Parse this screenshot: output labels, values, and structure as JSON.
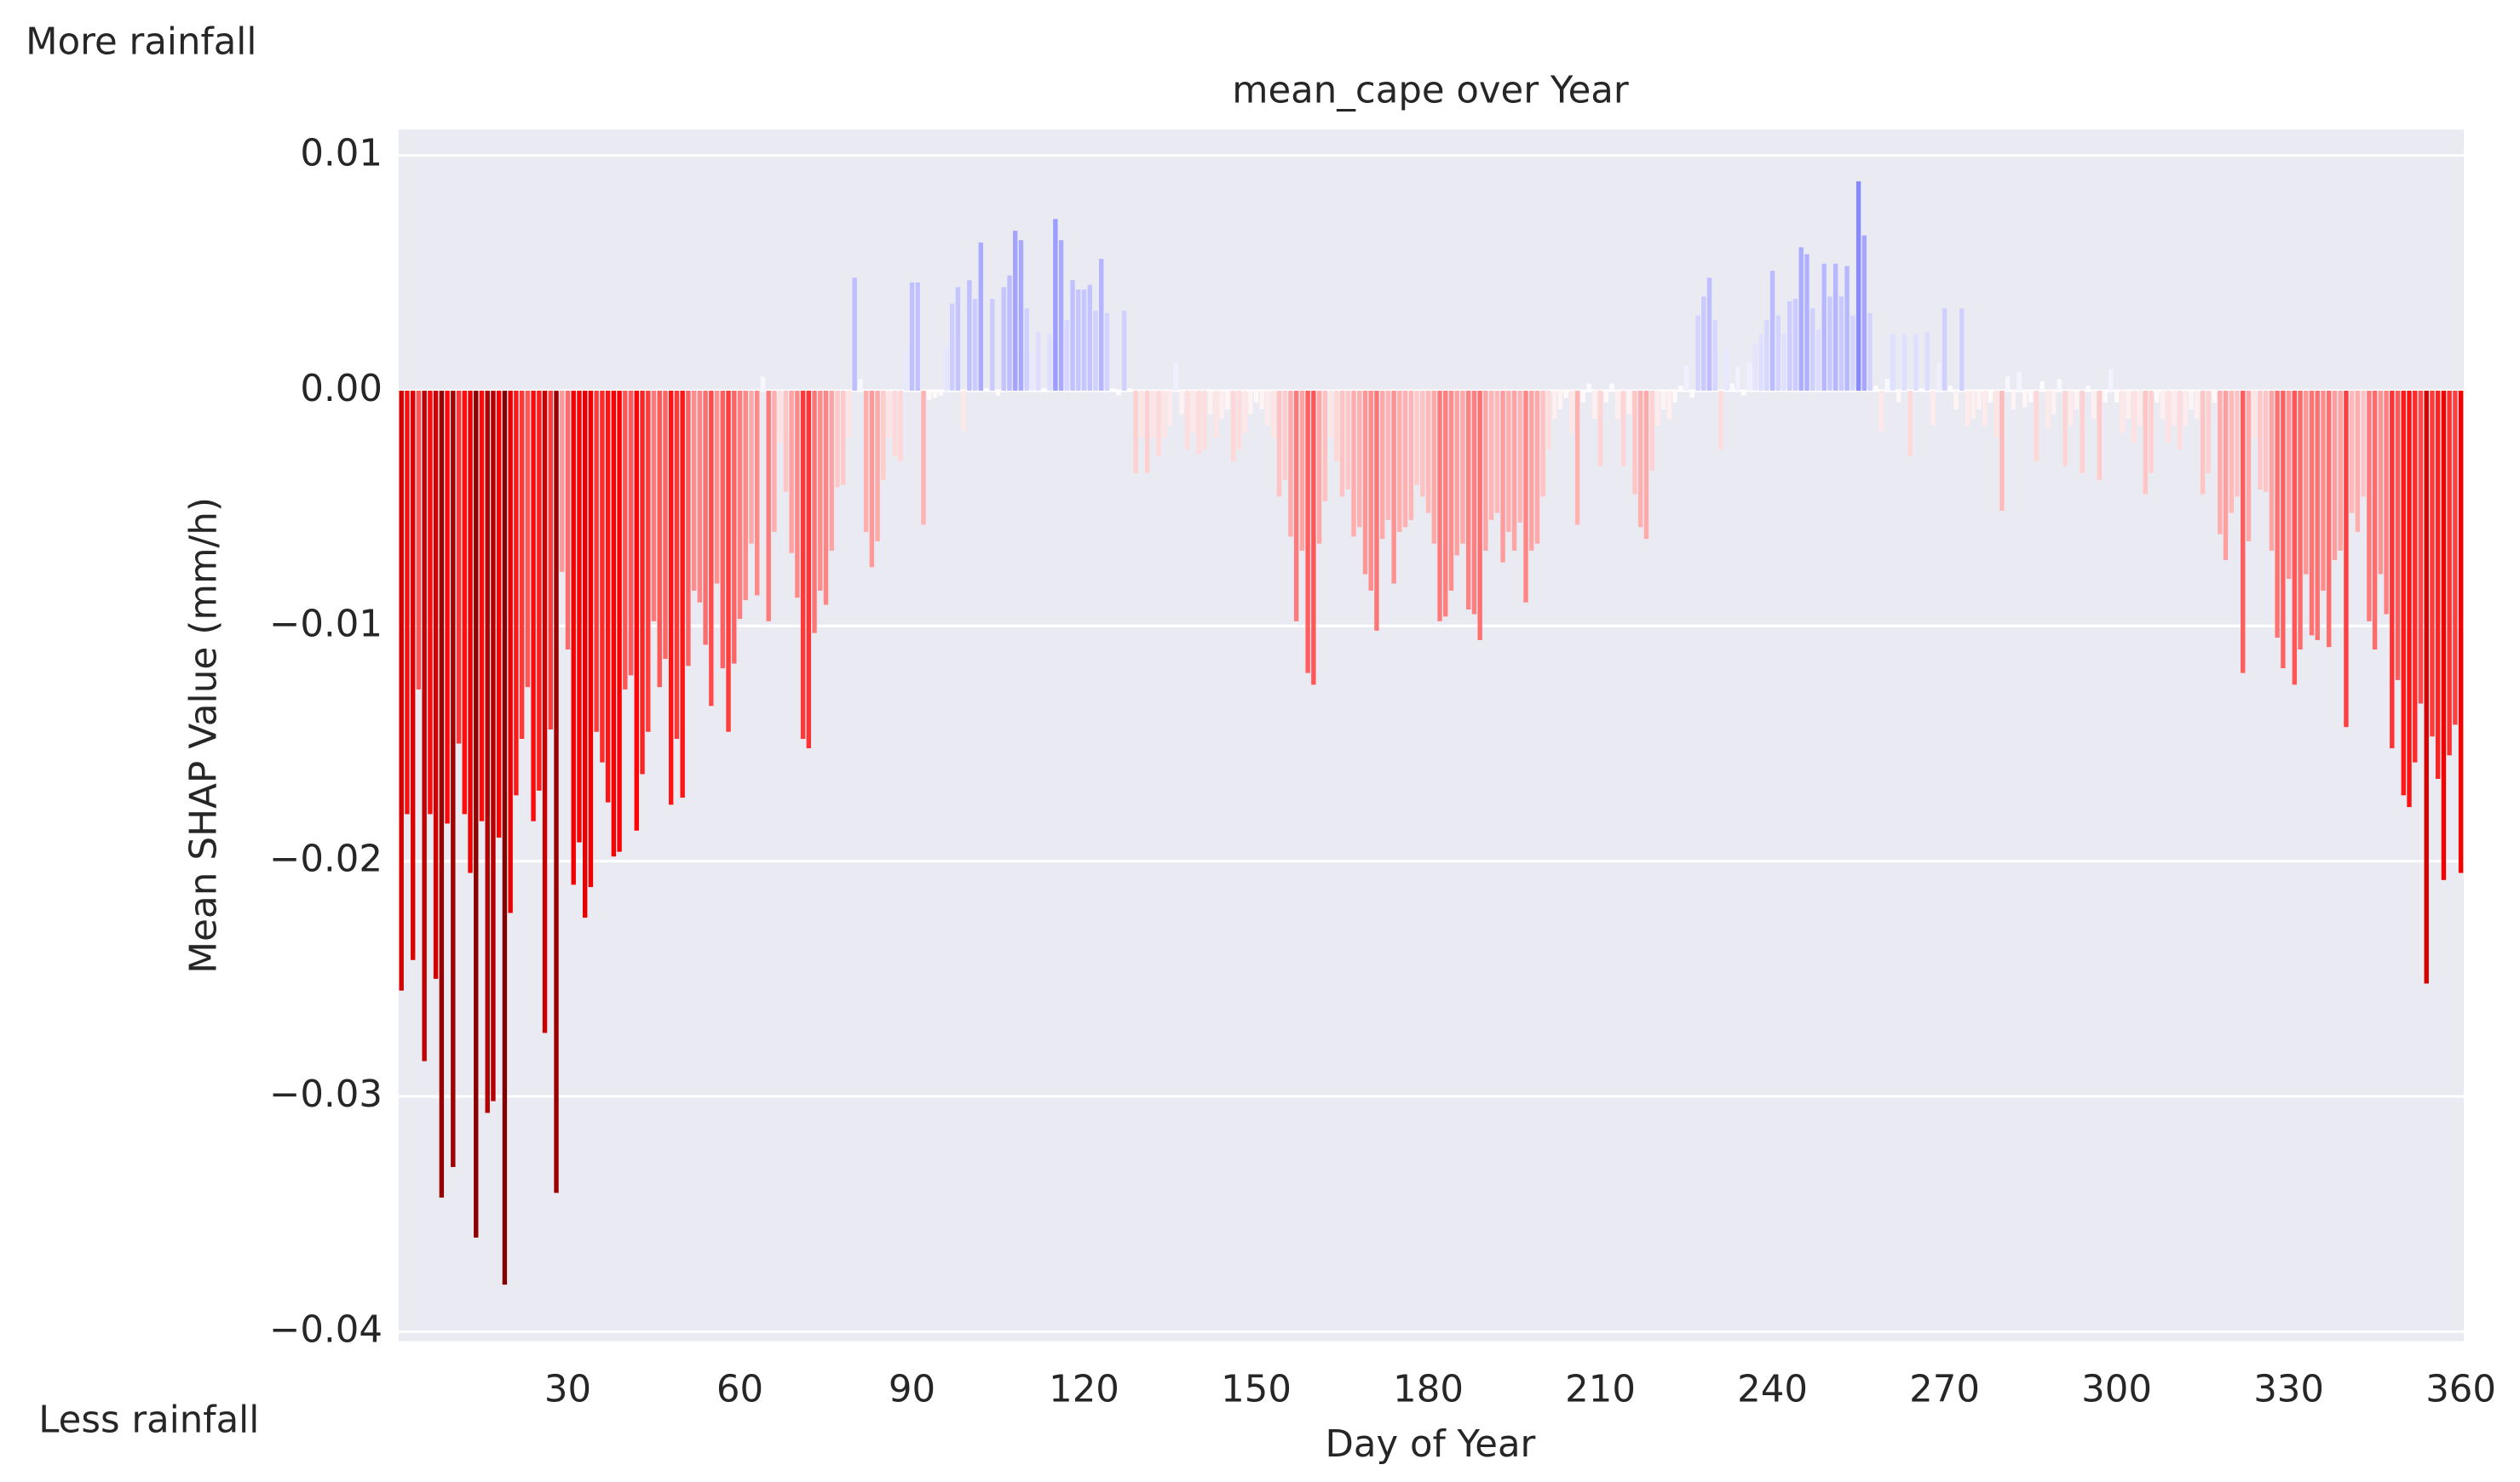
{
  "chart_data": {
    "type": "bar",
    "title": "mean_cape over Year",
    "xlabel": "Day of Year",
    "ylabel": "Mean SHAP Value (mm/h)",
    "annotations": [
      "More rainfall",
      "Less rainfall"
    ],
    "colormap": "seismic_r",
    "grid": true,
    "x": [
      1,
      2,
      3,
      4,
      5,
      6,
      7,
      8,
      9,
      10,
      11,
      12,
      13,
      14,
      15,
      16,
      17,
      18,
      19,
      20,
      21,
      22,
      23,
      24,
      25,
      26,
      27,
      28,
      29,
      30,
      31,
      32,
      33,
      34,
      35,
      36,
      37,
      38,
      39,
      40,
      41,
      42,
      43,
      44,
      45,
      46,
      47,
      48,
      49,
      50,
      51,
      52,
      53,
      54,
      55,
      56,
      57,
      58,
      59,
      60,
      61,
      62,
      63,
      64,
      65,
      66,
      67,
      68,
      69,
      70,
      71,
      72,
      73,
      74,
      75,
      76,
      77,
      78,
      79,
      80,
      81,
      82,
      83,
      84,
      85,
      86,
      87,
      88,
      89,
      90,
      91,
      92,
      93,
      94,
      95,
      96,
      97,
      98,
      99,
      100,
      101,
      102,
      103,
      104,
      105,
      106,
      107,
      108,
      109,
      110,
      111,
      112,
      113,
      114,
      115,
      116,
      117,
      118,
      119,
      120,
      121,
      122,
      123,
      124,
      125,
      126,
      127,
      128,
      129,
      130,
      131,
      132,
      133,
      134,
      135,
      136,
      137,
      138,
      139,
      140,
      141,
      142,
      143,
      144,
      145,
      146,
      147,
      148,
      149,
      150,
      151,
      152,
      153,
      154,
      155,
      156,
      157,
      158,
      159,
      160,
      161,
      162,
      163,
      164,
      165,
      166,
      167,
      168,
      169,
      170,
      171,
      172,
      173,
      174,
      175,
      176,
      177,
      178,
      179,
      180,
      181,
      182,
      183,
      184,
      185,
      186,
      187,
      188,
      189,
      190,
      191,
      192,
      193,
      194,
      195,
      196,
      197,
      198,
      199,
      200,
      201,
      202,
      203,
      204,
      205,
      206,
      207,
      208,
      209,
      210,
      211,
      212,
      213,
      214,
      215,
      216,
      217,
      218,
      219,
      220,
      221,
      222,
      223,
      224,
      225,
      226,
      227,
      228,
      229,
      230,
      231,
      232,
      233,
      234,
      235,
      236,
      237,
      238,
      239,
      240,
      241,
      242,
      243,
      244,
      245,
      246,
      247,
      248,
      249,
      250,
      251,
      252,
      253,
      254,
      255,
      256,
      257,
      258,
      259,
      260,
      261,
      262,
      263,
      264,
      265,
      266,
      267,
      268,
      269,
      270,
      271,
      272,
      273,
      274,
      275,
      276,
      277,
      278,
      279,
      280,
      281,
      282,
      283,
      284,
      285,
      286,
      287,
      288,
      289,
      290,
      291,
      292,
      293,
      294,
      295,
      296,
      297,
      298,
      299,
      300,
      301,
      302,
      303,
      304,
      305,
      306,
      307,
      308,
      309,
      310,
      311,
      312,
      313,
      314,
      315,
      316,
      317,
      318,
      319,
      320,
      321,
      322,
      323,
      324,
      325,
      326,
      327,
      328,
      329,
      330,
      331,
      332,
      333,
      334,
      335,
      336,
      337,
      338,
      339,
      340,
      341,
      342,
      343,
      344,
      345,
      346,
      347,
      348,
      349,
      350,
      351,
      352,
      353,
      354,
      355,
      356,
      357,
      358,
      359,
      360
    ],
    "values": [
      -0.0255,
      -0.018,
      -0.0242,
      -0.0127,
      -0.0285,
      -0.018,
      -0.025,
      -0.0343,
      -0.0184,
      -0.033,
      -0.015,
      -0.018,
      -0.0205,
      -0.036,
      -0.0183,
      -0.0307,
      -0.0302,
      -0.019,
      -0.038,
      -0.0222,
      -0.0172,
      -0.0148,
      -0.0126,
      -0.0183,
      -0.017,
      -0.0273,
      -0.0144,
      -0.0341,
      -0.0077,
      -0.011,
      -0.021,
      -0.0192,
      -0.0224,
      -0.0211,
      -0.0145,
      -0.0158,
      -0.0175,
      -0.0198,
      -0.0196,
      -0.0127,
      -0.0121,
      -0.0187,
      -0.0163,
      -0.0145,
      -0.0098,
      -0.0126,
      -0.0114,
      -0.0176,
      -0.0148,
      -0.0173,
      -0.0117,
      -0.0085,
      -0.009,
      -0.0108,
      -0.0134,
      -0.0082,
      -0.0118,
      -0.0145,
      -0.0116,
      -0.0097,
      -0.0089,
      -0.0065,
      -0.0087,
      0.0006,
      -0.0098,
      -0.006,
      -0.0022,
      -0.0043,
      -0.0069,
      -0.0088,
      -0.0148,
      -0.0152,
      -0.0103,
      -0.0085,
      -0.0091,
      -0.0068,
      -0.0041,
      -0.004,
      -0.002,
      0.0048,
      0.0005,
      -0.006,
      -0.0075,
      -0.0064,
      -0.0038,
      -0.002,
      -0.0028,
      -0.003,
      0.0017,
      0.0046,
      0.0046,
      -0.0057,
      -0.0004,
      -0.0003,
      -0.0002,
      0.0019,
      0.0037,
      0.0044,
      -0.0017,
      0.0047,
      0.0039,
      0.0063,
      0.0001,
      0.0039,
      -0.0002,
      0.0044,
      0.0049,
      0.0068,
      0.0064,
      0.0035,
      0.0017,
      0.0025,
      0.0001,
      0.0024,
      0.0073,
      0.0064,
      0.003,
      0.0047,
      0.0043,
      0.0043,
      0.0045,
      0.0034,
      0.0056,
      0.0033,
      0.0001,
      -0.0002,
      0.0034,
      0.0001,
      -0.0035,
      -0.002,
      -0.0035,
      -0.002,
      -0.0028,
      -0.002,
      -0.0015,
      0.0012,
      -0.001,
      -0.0025,
      -0.0018,
      -0.0027,
      -0.0025,
      -0.001,
      -0.002,
      -0.0012,
      -0.0008,
      -0.003,
      -0.0025,
      -0.0018,
      -0.001,
      -0.0005,
      -0.0008,
      -0.0015,
      -0.002,
      -0.0045,
      -0.0038,
      -0.0062,
      -0.0098,
      -0.0068,
      -0.012,
      -0.0125,
      -0.0065,
      -0.0047,
      -0.002,
      -0.003,
      -0.0045,
      -0.0042,
      -0.0062,
      -0.0058,
      -0.0078,
      -0.0085,
      -0.0102,
      -0.0063,
      -0.0055,
      -0.0082,
      -0.006,
      -0.0058,
      -0.0055,
      -0.004,
      -0.0045,
      -0.0052,
      -0.0065,
      -0.0098,
      -0.0096,
      -0.0085,
      -0.007,
      -0.0065,
      -0.0093,
      -0.0095,
      -0.0106,
      -0.0068,
      -0.0055,
      -0.0052,
      -0.0073,
      -0.006,
      -0.0068,
      -0.0056,
      -0.009,
      -0.0068,
      -0.0065,
      -0.0045,
      -0.0025,
      -0.0012,
      -0.0008,
      -0.0003,
      -0.0018,
      -0.0057,
      -0.0005,
      0.0003,
      -0.0012,
      -0.0032,
      -0.0005,
      0.0003,
      -0.0012,
      -0.0032,
      -0.001,
      -0.0044,
      -0.0058,
      -0.0063,
      -0.0034,
      -0.0015,
      -0.0008,
      -0.0012,
      -0.0005,
      0.0002,
      0.0011,
      -0.0003,
      0.0032,
      0.004,
      0.0048,
      0.003,
      -0.0025,
      0.0018,
      0.0003,
      0.001,
      -0.0002,
      0.0012,
      0.002,
      0.0024,
      0.003,
      0.0051,
      0.0032,
      0.0024,
      0.0038,
      0.0039,
      0.0061,
      0.0058,
      0.0035,
      0.0026,
      0.0054,
      0.004,
      0.0054,
      0.004,
      0.0053,
      0.0032,
      0.0089,
      0.0066,
      0.0033,
      0.0002,
      -0.0017,
      0.0005,
      0.0024,
      -0.0005,
      0.0024,
      -0.0028,
      0.0024,
      0.0001,
      0.0025,
      -0.0015,
      0.0012,
      0.0035,
      0.0002,
      -0.0008,
      0.0035,
      -0.0015,
      -0.0012,
      -0.0008,
      -0.0015,
      -0.0005,
      -0.002,
      -0.0051,
      0.0006,
      -0.0008,
      0.0008,
      -0.0007,
      -0.0005,
      -0.003,
      0.0004,
      -0.0016,
      -0.001,
      0.0005,
      -0.0032,
      -0.0015,
      -0.0008,
      -0.0035,
      0.0002,
      -0.0012,
      -0.0038,
      -0.0005,
      0.0009,
      -0.0005,
      -0.0018,
      -0.0012,
      -0.0022,
      -0.0015,
      -0.0044,
      -0.0035,
      -0.0005,
      -0.0012,
      -0.0022,
      -0.0015,
      -0.0025,
      -0.0015,
      -0.0008,
      -0.0012,
      -0.0044,
      -0.0035,
      -0.0005,
      -0.0061,
      -0.0072,
      -0.0052,
      -0.0045,
      -0.012,
      -0.0064,
      -0.002,
      -0.0042,
      -0.0043,
      -0.0068,
      -0.0105,
      -0.0118,
      -0.008,
      -0.0125,
      -0.011,
      -0.0078,
      -0.0104,
      -0.0106,
      -0.0085,
      -0.0109,
      -0.0072,
      -0.0068,
      -0.0143,
      -0.0052,
      -0.006,
      -0.0045,
      -0.0098,
      -0.011,
      -0.0078,
      -0.0095,
      -0.0152,
      -0.0123,
      -0.0172,
      -0.0177,
      -0.0158,
      -0.0133,
      -0.0252,
      -0.0147,
      -0.0165,
      -0.0208,
      -0.0155,
      -0.0142,
      -0.0205
    ],
    "xlim": [
      0.5,
      360.5
    ],
    "xticks": [
      30,
      60,
      90,
      120,
      150,
      180,
      210,
      240,
      270,
      300,
      330,
      360
    ],
    "ylim": [
      -0.0404,
      0.0111
    ],
    "yticks": [
      {
        "value": -0.04,
        "label": "−0.04"
      },
      {
        "value": -0.03,
        "label": "−0.03"
      },
      {
        "value": -0.02,
        "label": "−0.02"
      },
      {
        "value": -0.01,
        "label": "−0.01"
      },
      {
        "value": 0,
        "label": "0.00"
      },
      {
        "value": 0.01,
        "label": "0.01"
      }
    ]
  }
}
